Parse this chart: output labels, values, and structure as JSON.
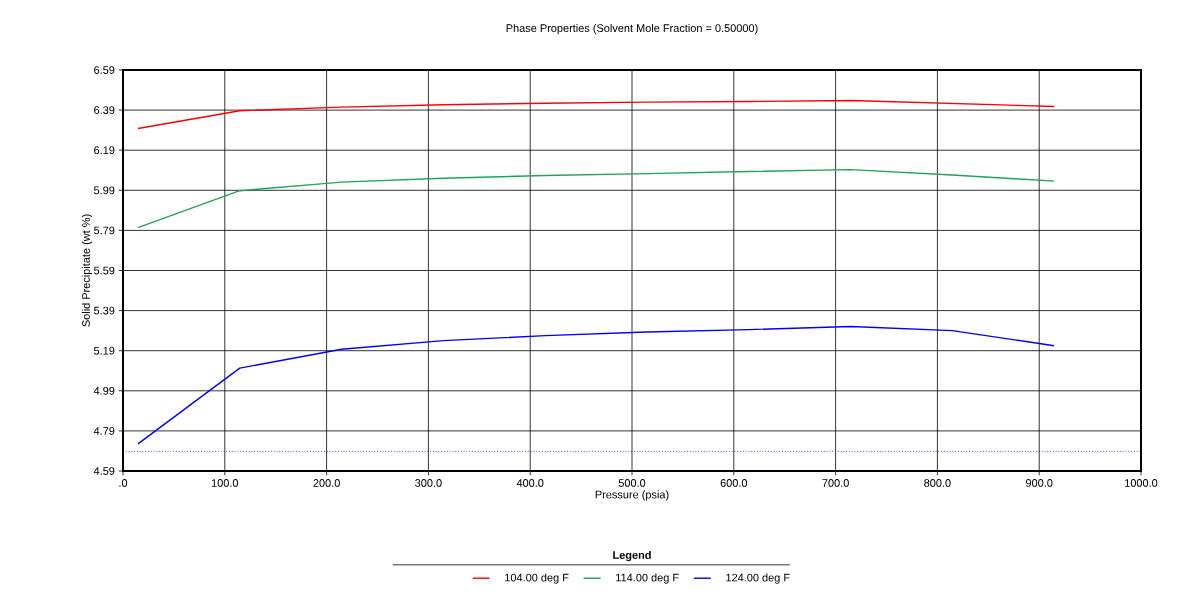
{
  "chart_data": {
    "type": "line",
    "title": "Phase Properties (Solvent Mole Fraction = 0.50000)",
    "xlabel": "Pressure (psia)",
    "ylabel": "Solid Precipitate (wt %)",
    "legend_title": "Legend",
    "x": [
      14.7,
      114.7,
      214.7,
      314.7,
      414.7,
      514.7,
      614.7,
      714.7,
      814.7,
      914.7
    ],
    "series": [
      {
        "name": "104.00 deg F",
        "color": "#ff0000",
        "values": [
          6.298,
          6.387,
          6.405,
          6.417,
          6.424,
          6.43,
          6.433,
          6.438,
          6.423,
          6.408
        ]
      },
      {
        "name": "114.00 deg F",
        "color": "#1fa55a",
        "values": [
          5.804,
          5.988,
          6.031,
          6.05,
          6.064,
          6.073,
          6.084,
          6.093,
          6.066,
          6.036
        ]
      },
      {
        "name": "124.00 deg F",
        "color": "#0000ff",
        "values": [
          4.725,
          5.103,
          5.197,
          5.24,
          5.265,
          5.283,
          5.295,
          5.311,
          5.29,
          5.215
        ]
      }
    ],
    "ref_lines": [
      {
        "axis": "y",
        "value": 4.688,
        "color": "#000080",
        "line_style": "dotted"
      }
    ],
    "xlim": [
      0,
      1000
    ],
    "ylim": [
      4.59,
      6.59
    ],
    "xticks": [
      {
        "value": 0,
        "label": ".0"
      },
      {
        "value": 100,
        "label": "100.0"
      },
      {
        "value": 200,
        "label": "200.0"
      },
      {
        "value": 300,
        "label": "300.0"
      },
      {
        "value": 400,
        "label": "400.0"
      },
      {
        "value": 500,
        "label": "500.0"
      },
      {
        "value": 600,
        "label": "600.0"
      },
      {
        "value": 700,
        "label": "700.0"
      },
      {
        "value": 800,
        "label": "800.0"
      },
      {
        "value": 900,
        "label": "900.0"
      },
      {
        "value": 1000,
        "label": "1000.0"
      }
    ],
    "yticks": [
      4.59,
      4.79,
      4.99,
      5.19,
      5.39,
      5.59,
      5.79,
      5.99,
      6.19,
      6.39,
      6.59
    ],
    "grid": true,
    "legend": "bottom",
    "marker": "none",
    "line_style": "solid"
  }
}
